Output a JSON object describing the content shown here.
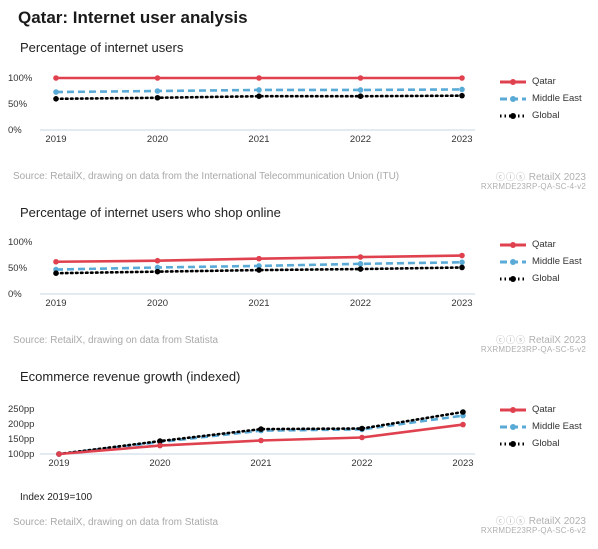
{
  "page": {
    "title": "Qatar: Internet user analysis"
  },
  "colors": {
    "qatar": "#e0414f",
    "middle_east": "#5aaad7",
    "global": "#000000",
    "axis": "#c8d4e6",
    "tick": "#333333"
  },
  "brand": {
    "name": "RetailX 2023",
    "cc_icons": "ⓒⓘⓢ"
  },
  "charts": [
    {
      "subtitle": "Percentage of internet users",
      "source": "Source: RetailX, drawing on data from the International Telecommunication Union (ITU)",
      "code": "RXRMDE23RP-QA-SC-4-v2",
      "note": ""
    },
    {
      "subtitle": "Percentage of internet users who shop online",
      "source": "Source: RetailX, drawing on data from Statista",
      "code": "RXRMDE23RP-QA-SC-5-v2",
      "note": ""
    },
    {
      "subtitle": "Ecommerce revenue growth (indexed)",
      "source": "Source: RetailX, drawing on data from Statista",
      "code": "RXRMDE23RP-QA-SC-6-v2",
      "note": "Index 2019=100"
    }
  ],
  "chart_data": [
    {
      "type": "line",
      "title": "Percentage of internet users",
      "x": [
        "2019",
        "2020",
        "2021",
        "2022",
        "2023"
      ],
      "ylim": [
        0,
        100
      ],
      "yticks": [
        0,
        50,
        100
      ],
      "ytick_labels": [
        "0%",
        "50%",
        "100%"
      ],
      "legend_position": "right",
      "series": [
        {
          "name": "Qatar",
          "values": [
            100,
            100,
            100,
            100,
            100
          ]
        },
        {
          "name": "Middle East",
          "values": [
            73,
            75,
            77,
            77,
            78
          ]
        },
        {
          "name": "Global",
          "values": [
            60,
            62,
            65,
            65,
            66
          ]
        }
      ]
    },
    {
      "type": "line",
      "title": "Percentage of internet users who shop online",
      "x": [
        "2019",
        "2020",
        "2021",
        "2022",
        "2023"
      ],
      "ylim": [
        0,
        100
      ],
      "yticks": [
        0,
        50,
        100
      ],
      "ytick_labels": [
        "0%",
        "50%",
        "100%"
      ],
      "legend_position": "right",
      "series": [
        {
          "name": "Qatar",
          "values": [
            62,
            64,
            68,
            71,
            74
          ]
        },
        {
          "name": "Middle East",
          "values": [
            47,
            51,
            54,
            58,
            61
          ]
        },
        {
          "name": "Global",
          "values": [
            40,
            43,
            46,
            48,
            51
          ]
        }
      ]
    },
    {
      "type": "line",
      "title": "Ecommerce revenue growth (indexed)",
      "x": [
        "2019",
        "2020",
        "2021",
        "2022",
        "2023"
      ],
      "ylim": [
        100,
        250
      ],
      "yticks": [
        100,
        150,
        200,
        250
      ],
      "ytick_labels": [
        "100pp",
        "150pp",
        "200pp",
        "250pp"
      ],
      "legend_position": "right",
      "series": [
        {
          "name": "Qatar",
          "values": [
            100,
            128,
            145,
            155,
            198
          ]
        },
        {
          "name": "Middle East",
          "values": [
            100,
            140,
            178,
            182,
            228
          ]
        },
        {
          "name": "Global",
          "values": [
            100,
            143,
            183,
            185,
            240
          ]
        }
      ]
    }
  ]
}
